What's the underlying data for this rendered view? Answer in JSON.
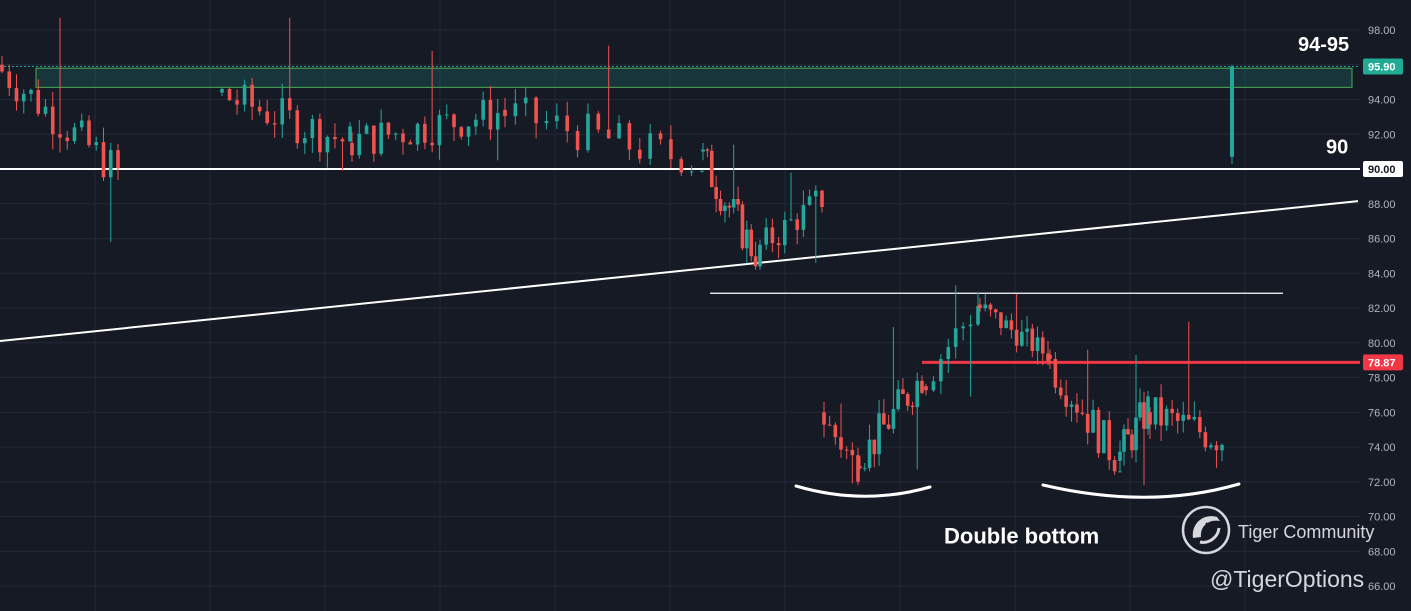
{
  "chart_data": {
    "type": "candlestick",
    "y_axis": {
      "ticks": [
        98,
        96,
        94,
        92,
        90,
        88,
        86,
        84,
        82,
        80,
        78,
        76,
        74,
        72,
        70,
        68,
        66
      ],
      "tick_labels": [
        "98.00",
        "96.00",
        "94.00",
        "92.00",
        "90.00",
        "88.00",
        "86.00",
        "84.00",
        "82.00",
        "80.00",
        "78.00",
        "76.00",
        "74.00",
        "72.00",
        "70.00",
        "68.00",
        "66.00"
      ],
      "ylim": [
        65.8,
        99.6
      ],
      "position": "right"
    },
    "grid": true,
    "colors": {
      "background": "#161a25",
      "grid": "#232838",
      "up": "#26a69a",
      "down": "#ef5350",
      "zone_fill": "#26a69a",
      "zone_stroke": "#4caf50",
      "resistance": "#f23645",
      "annotation": "#ffffff"
    },
    "price_tags": [
      {
        "label": "95.90",
        "value": 95.9,
        "color": "#22ab94"
      },
      {
        "label": "90.00",
        "value": 90.0,
        "color": "#ffffff"
      },
      {
        "label": "78.87",
        "value": 78.87,
        "color": "#f23645"
      }
    ],
    "zone": {
      "low": 94.7,
      "high": 95.8
    },
    "horizontal_levels": [
      {
        "value": 90.0,
        "style": "white"
      },
      {
        "value": 82.85,
        "style": "thin-white"
      },
      {
        "value": 78.87,
        "style": "red"
      }
    ],
    "trendline": {
      "from": 80.1,
      "to": 88.15
    },
    "annotations": [
      {
        "text": "94-95",
        "value": 96.8
      },
      {
        "text": "90",
        "value": 90.9
      },
      {
        "text": "Double bottom",
        "value": 68.45
      }
    ],
    "segments": [
      {
        "name": "segment-1",
        "start": 96.0,
        "end": 89.8,
        "high": 98.8,
        "low": 85.7,
        "bars": 17,
        "color_bias": "up"
      },
      {
        "name": "segment-2",
        "start": 94.4,
        "end": 91.5,
        "high": 98.8,
        "low": 89.8,
        "bars": 18,
        "color_bias": "down"
      },
      {
        "name": "segment-3",
        "start": 91.5,
        "end": 93.3,
        "high": 96.9,
        "low": 90.4,
        "bars": 22,
        "color_bias": "mixed"
      },
      {
        "name": "segment-4",
        "start": 93.4,
        "end": 90.3,
        "high": 97.2,
        "low": 89.6,
        "bars": 20,
        "color_bias": "down"
      },
      {
        "name": "segment-5",
        "start": 91.0,
        "end": 84.6,
        "high": 91.5,
        "low": 84.2,
        "bars": 14,
        "color_bias": "down"
      },
      {
        "name": "segment-6",
        "start": 85.2,
        "end": 88.3,
        "high": 89.9,
        "low": 84.5,
        "bars": 11,
        "color_bias": "up"
      },
      {
        "name": "segment-7",
        "start": 76.0,
        "end": 72.8,
        "high": 76.6,
        "low": 71.8,
        "bars": 7,
        "color_bias": "down"
      },
      {
        "name": "segment-8",
        "start": 72.9,
        "end": 78.1,
        "high": 81.0,
        "low": 72.6,
        "bars": 14,
        "color_bias": "up"
      },
      {
        "name": "segment-9",
        "start": 77.5,
        "end": 82.2,
        "high": 83.4,
        "low": 76.8,
        "bars": 8,
        "color_bias": "up"
      },
      {
        "name": "segment-10",
        "start": 82.2,
        "end": 79.3,
        "high": 82.9,
        "low": 78.7,
        "bars": 14,
        "color_bias": "down"
      },
      {
        "name": "segment-11",
        "start": 79.3,
        "end": 73.0,
        "high": 79.7,
        "low": 72.4,
        "bars": 14,
        "color_bias": "down"
      },
      {
        "name": "segment-12",
        "start": 73.2,
        "end": 76.2,
        "high": 79.4,
        "low": 71.7,
        "bars": 8,
        "color_bias": "up"
      },
      {
        "name": "segment-13",
        "start": 76.0,
        "end": 74.5,
        "high": 81.3,
        "low": 72.7,
        "bars": 14,
        "color_bias": "mixed"
      }
    ],
    "last_candle": {
      "open": 90.7,
      "high": 96.0,
      "low": 90.3,
      "close": 95.9
    }
  },
  "watermark": {
    "brand": "Tiger Community",
    "handle": "@TigerOptions"
  }
}
